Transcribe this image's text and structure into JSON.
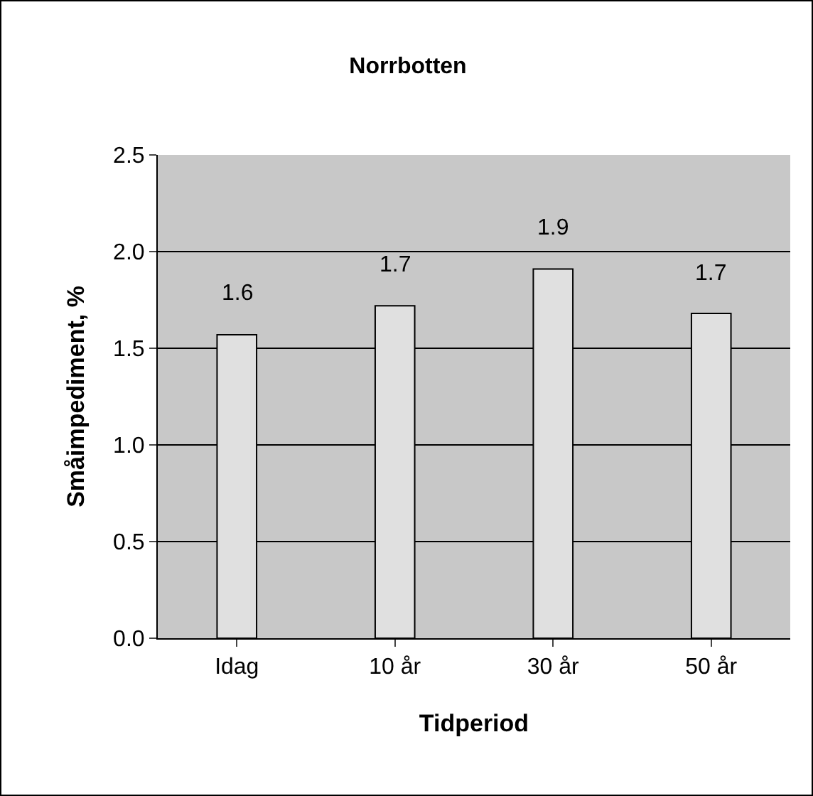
{
  "chart_data": {
    "type": "bar",
    "title": "Norrbotten",
    "xlabel": "Tidperiod",
    "ylabel": "Småimpediment, %",
    "categories": [
      "Idag",
      "10 år",
      "30 år",
      "50 år"
    ],
    "values": [
      1.57,
      1.72,
      1.91,
      1.68
    ],
    "value_labels": [
      "1.6",
      "1.7",
      "1.9",
      "1.7"
    ],
    "color": "#e0e0e0",
    "ylim": [
      0,
      2.5
    ],
    "yticks": [
      {
        "value": 0,
        "label": "0.0"
      },
      {
        "value": 0.5,
        "label": "0.5"
      },
      {
        "value": 1,
        "label": "1.0"
      },
      {
        "value": 1.5,
        "label": "1.5"
      },
      {
        "value": 2,
        "label": "2.0"
      },
      2.5
    ],
    "grid": "y"
  }
}
